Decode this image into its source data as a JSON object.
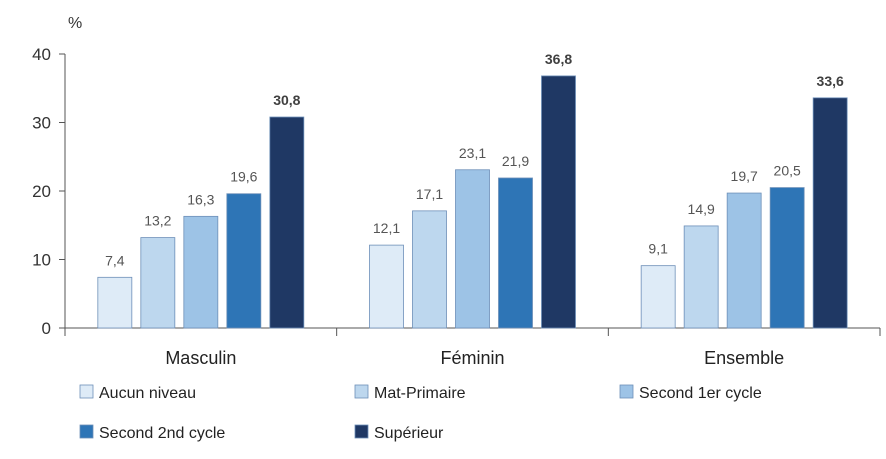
{
  "chart_data": {
    "type": "bar",
    "unit_label": "%",
    "ylim": [
      0,
      40
    ],
    "yticks": [
      "0",
      "10",
      "20",
      "30",
      "40"
    ],
    "categories": [
      "Masculin",
      "Féminin",
      "Ensemble"
    ],
    "series": [
      {
        "name": "Aucun niveau",
        "color": "#deebf7",
        "values": [
          7.4,
          12.1,
          9.1
        ],
        "labels": [
          "7,4",
          "12,1",
          "9,1"
        ],
        "bold": false
      },
      {
        "name": "Mat-Primaire",
        "color": "#bdd7ee",
        "values": [
          13.2,
          17.1,
          14.9
        ],
        "labels": [
          "13,2",
          "17,1",
          "14,9"
        ],
        "bold": false
      },
      {
        "name": "Second 1er cycle",
        "color": "#9dc3e6",
        "values": [
          16.3,
          23.1,
          19.7
        ],
        "labels": [
          "16,3",
          "23,1",
          "19,7"
        ],
        "bold": false
      },
      {
        "name": "Second 2nd cycle",
        "color": "#2e75b6",
        "values": [
          19.6,
          21.9,
          20.5
        ],
        "labels": [
          "19,6",
          "21,9",
          "20,5"
        ],
        "bold": false
      },
      {
        "name": "Supérieur",
        "color": "#1f3864",
        "values": [
          30.8,
          36.8,
          33.6
        ],
        "labels": [
          "30,8",
          "36,8",
          "33,6"
        ],
        "bold": true
      }
    ],
    "grid": false,
    "legend_position": "bottom"
  }
}
